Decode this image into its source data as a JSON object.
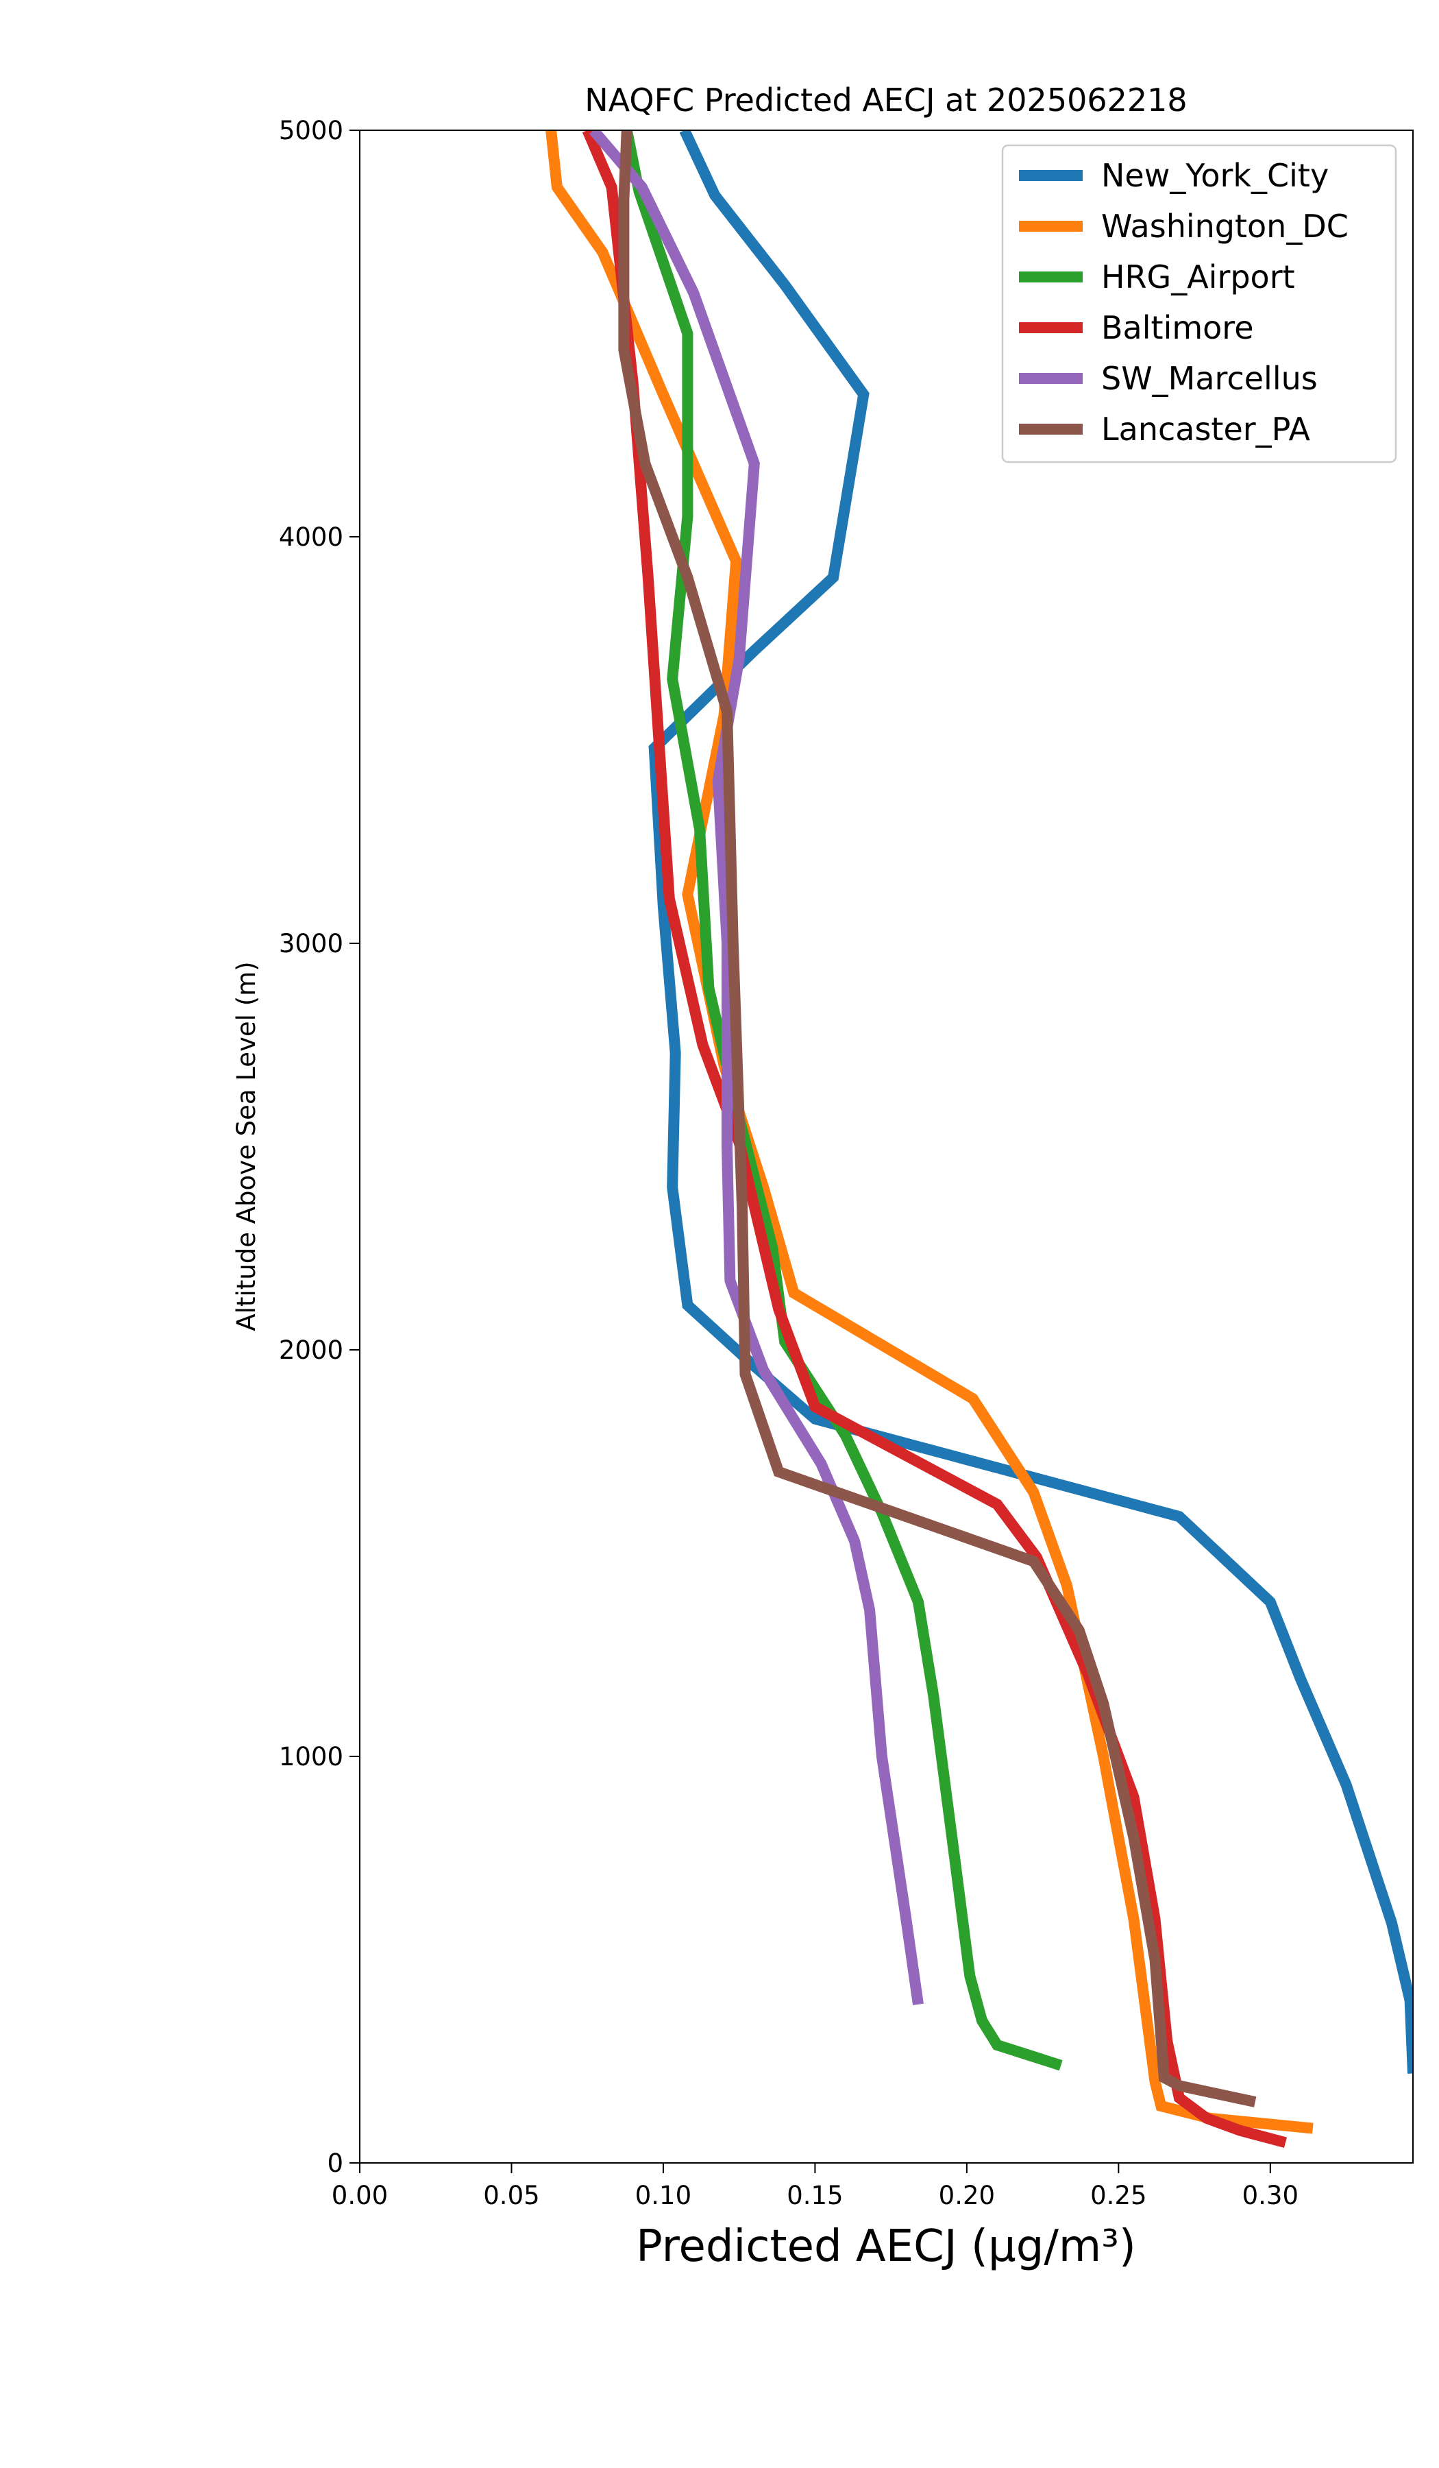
{
  "chart_data": {
    "type": "line",
    "title": "NAQFC Predicted AECJ at 2025062218",
    "xlabel": "Predicted AECJ (μg/m³)",
    "ylabel": "Altitude Above Sea Level (m)",
    "xlim": [
      0.0,
      0.347
    ],
    "ylim": [
      0,
      5000
    ],
    "xticks": [
      0.0,
      0.05,
      0.1,
      0.15,
      0.2,
      0.25,
      0.3
    ],
    "xtick_labels": [
      "0.00",
      "0.05",
      "0.10",
      "0.15",
      "0.20",
      "0.25",
      "0.30"
    ],
    "yticks": [
      0,
      1000,
      2000,
      3000,
      4000,
      5000
    ],
    "ytick_labels": [
      "0",
      "1000",
      "2000",
      "3000",
      "4000",
      "5000"
    ],
    "grid": false,
    "legend_position": "top-right",
    "series": [
      {
        "name": "New_York_City",
        "color": "#1f77b4",
        "points": [
          [
            0.347,
            220
          ],
          [
            0.346,
            400
          ],
          [
            0.34,
            590
          ],
          [
            0.325,
            930
          ],
          [
            0.31,
            1190
          ],
          [
            0.3,
            1380
          ],
          [
            0.27,
            1590
          ],
          [
            0.2,
            1730
          ],
          [
            0.15,
            1830
          ],
          [
            0.13,
            1960
          ],
          [
            0.108,
            2110
          ],
          [
            0.103,
            2400
          ],
          [
            0.104,
            2730
          ],
          [
            0.1,
            3090
          ],
          [
            0.097,
            3480
          ],
          [
            0.13,
            3720
          ],
          [
            0.156,
            3900
          ],
          [
            0.166,
            4350
          ],
          [
            0.14,
            4620
          ],
          [
            0.117,
            4840
          ],
          [
            0.107,
            5000
          ]
        ]
      },
      {
        "name": "Washington_DC",
        "color": "#ff7f0e",
        "points": [
          [
            0.314,
            85
          ],
          [
            0.28,
            110
          ],
          [
            0.264,
            140
          ],
          [
            0.262,
            200
          ],
          [
            0.255,
            600
          ],
          [
            0.245,
            1000
          ],
          [
            0.233,
            1420
          ],
          [
            0.222,
            1650
          ],
          [
            0.202,
            1880
          ],
          [
            0.143,
            2140
          ],
          [
            0.133,
            2400
          ],
          [
            0.12,
            2700
          ],
          [
            0.108,
            3120
          ],
          [
            0.12,
            3560
          ],
          [
            0.124,
            3940
          ],
          [
            0.1,
            4350
          ],
          [
            0.08,
            4700
          ],
          [
            0.065,
            4860
          ],
          [
            0.063,
            5000
          ]
        ]
      },
      {
        "name": "HRG_Airport",
        "color": "#2ca02c",
        "points": [
          [
            0.231,
            240
          ],
          [
            0.21,
            290
          ],
          [
            0.205,
            350
          ],
          [
            0.201,
            460
          ],
          [
            0.196,
            750
          ],
          [
            0.189,
            1150
          ],
          [
            0.184,
            1380
          ],
          [
            0.172,
            1600
          ],
          [
            0.16,
            1790
          ],
          [
            0.14,
            2020
          ],
          [
            0.136,
            2250
          ],
          [
            0.124,
            2600
          ],
          [
            0.115,
            2890
          ],
          [
            0.112,
            3280
          ],
          [
            0.103,
            3650
          ],
          [
            0.108,
            4050
          ],
          [
            0.108,
            4500
          ],
          [
            0.092,
            4850
          ],
          [
            0.088,
            5000
          ]
        ]
      },
      {
        "name": "Baltimore",
        "color": "#d62728",
        "points": [
          [
            0.305,
            50
          ],
          [
            0.29,
            80
          ],
          [
            0.279,
            110
          ],
          [
            0.27,
            160
          ],
          [
            0.266,
            300
          ],
          [
            0.262,
            600
          ],
          [
            0.255,
            900
          ],
          [
            0.24,
            1200
          ],
          [
            0.223,
            1490
          ],
          [
            0.21,
            1620
          ],
          [
            0.15,
            1860
          ],
          [
            0.138,
            2100
          ],
          [
            0.125,
            2510
          ],
          [
            0.113,
            2750
          ],
          [
            0.102,
            3110
          ],
          [
            0.095,
            3900
          ],
          [
            0.09,
            4380
          ],
          [
            0.083,
            4860
          ],
          [
            0.075,
            5000
          ]
        ]
      },
      {
        "name": "SW_Marcellus",
        "color": "#9467bd",
        "points": [
          [
            0.184,
            390
          ],
          [
            0.18,
            600
          ],
          [
            0.172,
            1000
          ],
          [
            0.168,
            1360
          ],
          [
            0.163,
            1530
          ],
          [
            0.152,
            1720
          ],
          [
            0.133,
            1950
          ],
          [
            0.122,
            2170
          ],
          [
            0.121,
            2500
          ],
          [
            0.121,
            3000
          ],
          [
            0.118,
            3400
          ],
          [
            0.125,
            3700
          ],
          [
            0.13,
            4180
          ],
          [
            0.11,
            4600
          ],
          [
            0.093,
            4860
          ],
          [
            0.077,
            5000
          ]
        ]
      },
      {
        "name": "Lancaster_PA",
        "color": "#8c564b",
        "points": [
          [
            0.295,
            150
          ],
          [
            0.27,
            190
          ],
          [
            0.265,
            210
          ],
          [
            0.262,
            500
          ],
          [
            0.255,
            800
          ],
          [
            0.245,
            1130
          ],
          [
            0.237,
            1310
          ],
          [
            0.222,
            1480
          ],
          [
            0.138,
            1700
          ],
          [
            0.127,
            1940
          ],
          [
            0.126,
            2350
          ],
          [
            0.123,
            3000
          ],
          [
            0.121,
            3570
          ],
          [
            0.108,
            3900
          ],
          [
            0.094,
            4180
          ],
          [
            0.087,
            4460
          ],
          [
            0.087,
            4830
          ],
          [
            0.088,
            5000
          ]
        ]
      }
    ]
  }
}
